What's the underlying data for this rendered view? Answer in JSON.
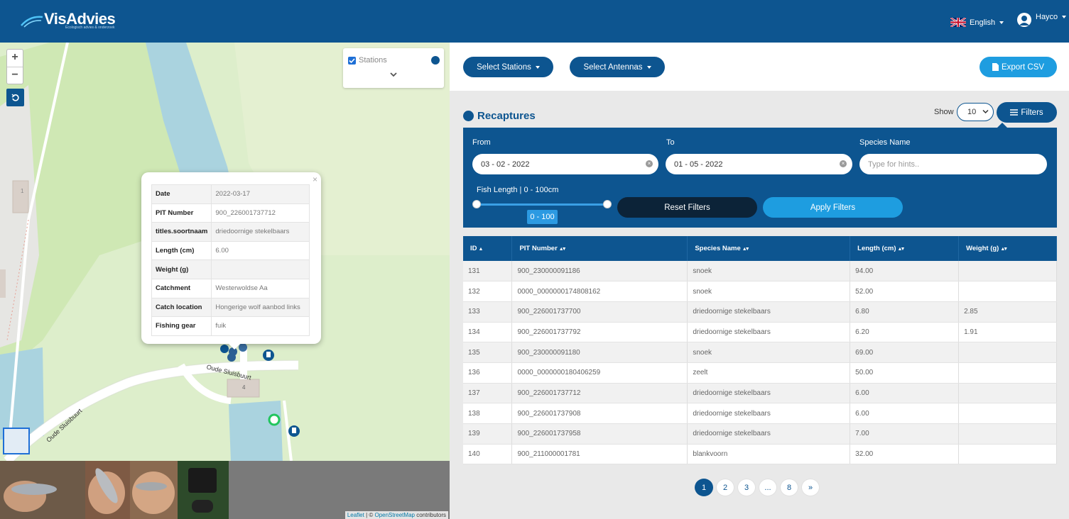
{
  "header": {
    "logo_text": "VisAdvies",
    "logo_tagline": "Ecologisch advies & onderzoek",
    "language": "English",
    "user": "Hayco",
    "colors": {
      "primary": "#0d5590",
      "accent": "#1e9de0"
    }
  },
  "map": {
    "zoom_in": "+",
    "zoom_out": "−",
    "stations_label": "Stations",
    "road_label_1": "Oude Sluisbuurt",
    "road_label_2": "Oude Sluisbuurt",
    "house_number": "4",
    "house_number_2": "1",
    "attribution_leaflet": "Leaflet",
    "attribution_sep": " | © ",
    "attribution_osm": "OpenStreetMap",
    "attribution_tail": " contributors",
    "popup": {
      "close": "×",
      "rows": [
        {
          "key": "Date",
          "value": "2022-03-17"
        },
        {
          "key": "PIT Number",
          "value": "900_226001737712"
        },
        {
          "key": "titles.soortnaam",
          "value": "driedoornige stekelbaars"
        },
        {
          "key": "Length (cm)",
          "value": "6.00"
        },
        {
          "key": "Weight (g)",
          "value": ""
        },
        {
          "key": "Catchment",
          "value": "Westerwoldse Aa"
        },
        {
          "key": "Catch location",
          "value": "Hongerige wolf aanbod links"
        },
        {
          "key": "Fishing gear",
          "value": "fuik"
        }
      ]
    }
  },
  "toolbar": {
    "select_stations": "Select Stations",
    "select_antennas": "Select Antennas",
    "export_csv": "Export CSV"
  },
  "recaptures": {
    "title": "Recaptures",
    "show_label": "Show",
    "show_value": "10",
    "filters_label": "Filters"
  },
  "filters": {
    "from_label": "From",
    "from_value": "03 - 02 - 2022",
    "to_label": "To",
    "to_value": "01 - 05 - 2022",
    "species_label": "Species Name",
    "species_placeholder": "Type for hints..",
    "fish_length_label": "Fish Length | 0 - 100cm",
    "slider_value": "0 - 100",
    "slider_min": 0,
    "slider_max": 100,
    "reset_label": "Reset Filters",
    "apply_label": "Apply Filters"
  },
  "table": {
    "columns": [
      "ID",
      "PIT Number",
      "Species Name",
      "Length (cm)",
      "Weight (g)"
    ],
    "rows": [
      [
        "131",
        "900_230000091186",
        "snoek",
        "94.00",
        ""
      ],
      [
        "132",
        "0000_0000000174808162",
        "snoek",
        "52.00",
        ""
      ],
      [
        "133",
        "900_226001737700",
        "driedoornige stekelbaars",
        "6.80",
        "2.85"
      ],
      [
        "134",
        "900_226001737792",
        "driedoornige stekelbaars",
        "6.20",
        "1.91"
      ],
      [
        "135",
        "900_230000091180",
        "snoek",
        "69.00",
        ""
      ],
      [
        "136",
        "0000_0000000180406259",
        "zeelt",
        "50.00",
        ""
      ],
      [
        "137",
        "900_226001737712",
        "driedoornige stekelbaars",
        "6.00",
        ""
      ],
      [
        "138",
        "900_226001737908",
        "driedoornige stekelbaars",
        "6.00",
        ""
      ],
      [
        "139",
        "900_226001737958",
        "driedoornige stekelbaars",
        "7.00",
        ""
      ],
      [
        "140",
        "900_211000001781",
        "blankvoorn",
        "32.00",
        ""
      ]
    ]
  },
  "pagination": {
    "pages": [
      "1",
      "2",
      "3",
      "...",
      "8",
      "»"
    ],
    "active": "1"
  }
}
